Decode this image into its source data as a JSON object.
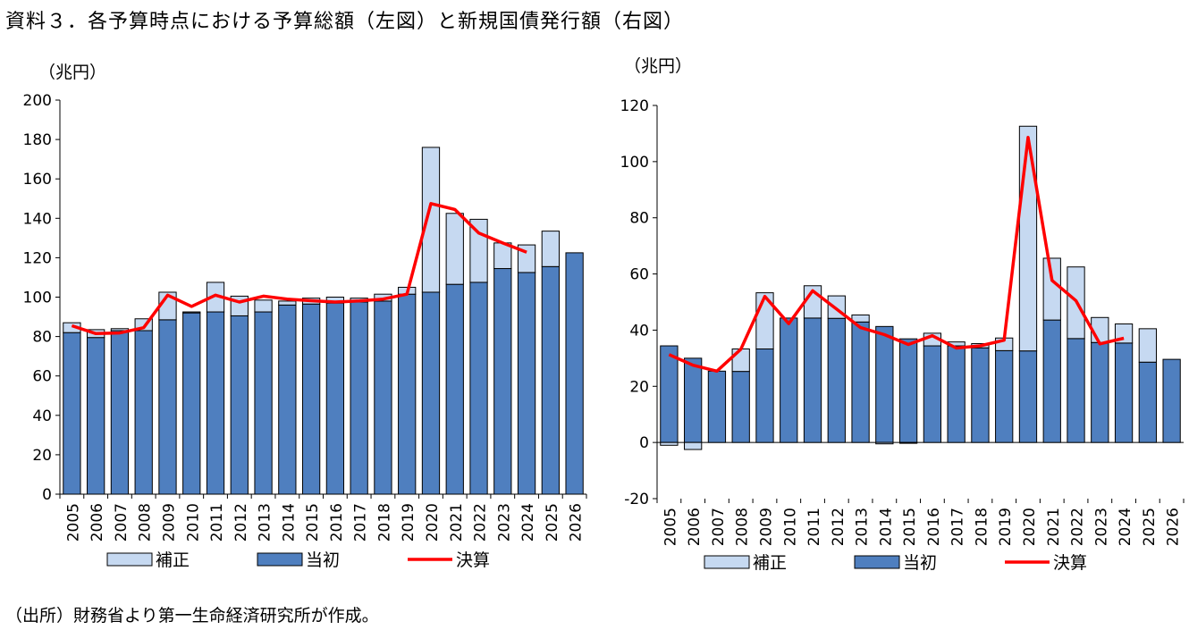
{
  "title": "資料３．各予算時点における予算総額（左図）と新規国債発行額（右図）",
  "source": "（出所）財務省より第一生命経済研究所が作成。",
  "colors": {
    "initial": "#4f7fbf",
    "supplement": "#c6d9f1",
    "settlement": "#ff0000",
    "outline": "#000000"
  },
  "chart_data": [
    {
      "type": "bar",
      "title": "予算総額",
      "ylabel": "（兆円）",
      "ylim": [
        0,
        200
      ],
      "yticks": [
        0,
        20,
        40,
        60,
        80,
        100,
        120,
        140,
        160,
        180,
        200
      ],
      "categories": [
        "2005",
        "2006",
        "2007",
        "2008",
        "2009",
        "2010",
        "2011",
        "2012",
        "2013",
        "2014",
        "2015",
        "2016",
        "2017",
        "2018",
        "2019",
        "2020",
        "2021",
        "2022",
        "2023",
        "2024",
        "2025",
        "2026"
      ],
      "legend": [
        "補正",
        "当初",
        "決算"
      ],
      "series": [
        {
          "name": "当初",
          "kind": "bar-base",
          "values": [
            82,
            79.5,
            83,
            83,
            88.5,
            92,
            92.5,
            90.5,
            92.5,
            96,
            96.5,
            97,
            97.5,
            98,
            101.5,
            102.5,
            106.5,
            107.5,
            114.5,
            112.5,
            115.5,
            122.5
          ]
        },
        {
          "name": "補正",
          "kind": "bar-stack",
          "values": [
            5,
            4,
            1,
            6,
            14,
            0.5,
            15,
            10,
            6,
            2,
            3,
            3,
            2,
            3.5,
            3.5,
            73.5,
            36,
            32,
            13,
            14,
            18,
            0
          ]
        },
        {
          "name": "決算",
          "kind": "line",
          "values": [
            85.5,
            81.5,
            81.8,
            84.5,
            101,
            95.3,
            101,
            97.5,
            100.5,
            99,
            98.2,
            97.5,
            98.1,
            99,
            101.5,
            147.5,
            144.5,
            132.5,
            127.5,
            122.8,
            null,
            null
          ]
        }
      ]
    },
    {
      "type": "bar",
      "title": "新規国債発行額",
      "ylabel": "（兆円）",
      "ylim": [
        -20,
        120
      ],
      "yticks": [
        -20,
        0,
        20,
        40,
        60,
        80,
        100,
        120
      ],
      "categories": [
        "2005",
        "2006",
        "2007",
        "2008",
        "2009",
        "2010",
        "2011",
        "2012",
        "2013",
        "2014",
        "2015",
        "2016",
        "2017",
        "2018",
        "2019",
        "2020",
        "2021",
        "2022",
        "2023",
        "2024",
        "2025",
        "2026"
      ],
      "legend": [
        "補正",
        "当初",
        "決算"
      ],
      "series": [
        {
          "name": "当初",
          "kind": "bar-base",
          "values": [
            34.4,
            30,
            25.4,
            25.3,
            33.3,
            44.3,
            44.3,
            44.2,
            42.9,
            41.3,
            36.9,
            34.4,
            34.4,
            33.7,
            32.7,
            32.6,
            43.6,
            37,
            35.6,
            35.4,
            28.6,
            29.6
          ]
        },
        {
          "name": "補正",
          "kind": "bar-stack",
          "values": [
            -1,
            -2.5,
            0,
            8,
            20,
            0,
            11.5,
            8,
            2.5,
            -0.5,
            -0.3,
            4.5,
            1.4,
            1.5,
            4.5,
            80,
            22,
            25.5,
            8.9,
            6.8,
            11.9,
            0
          ]
        },
        {
          "name": "決算",
          "kind": "line",
          "values": [
            31.3,
            27.5,
            25.4,
            33.2,
            52,
            42.3,
            54,
            47.5,
            40.9,
            38.4,
            34.9,
            38,
            33.6,
            34.4,
            36.4,
            108.6,
            57.7,
            50.5,
            35.1,
            37.1,
            null,
            null
          ]
        }
      ]
    }
  ]
}
